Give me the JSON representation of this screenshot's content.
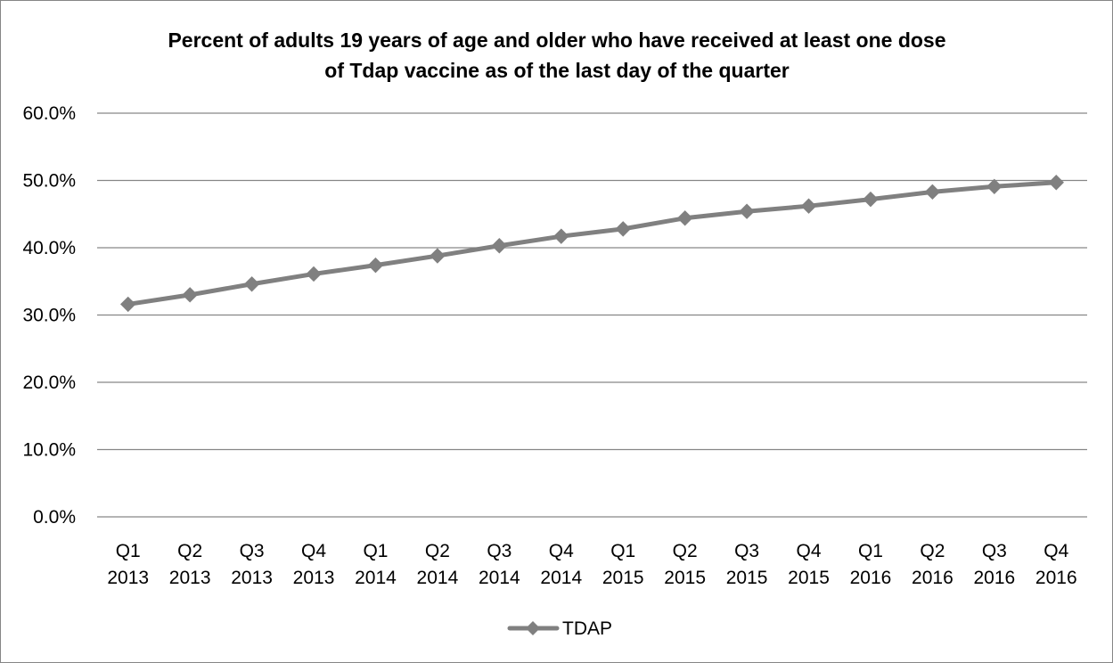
{
  "chart_data": {
    "type": "line",
    "title_lines": [
      "Percent of adults 19 years of age and older who have received at least one dose",
      "of Tdap vaccine as of the last day of the quarter"
    ],
    "xlabel": "",
    "ylabel": "",
    "categories": [
      [
        "Q1",
        "2013"
      ],
      [
        "Q2",
        "2013"
      ],
      [
        "Q3",
        "2013"
      ],
      [
        "Q4",
        "2013"
      ],
      [
        "Q1",
        "2014"
      ],
      [
        "Q2",
        "2014"
      ],
      [
        "Q3",
        "2014"
      ],
      [
        "Q4",
        "2014"
      ],
      [
        "Q1",
        "2015"
      ],
      [
        "Q2",
        "2015"
      ],
      [
        "Q3",
        "2015"
      ],
      [
        "Q4",
        "2015"
      ],
      [
        "Q1",
        "2016"
      ],
      [
        "Q2",
        "2016"
      ],
      [
        "Q3",
        "2016"
      ],
      [
        "Q4",
        "2016"
      ]
    ],
    "y_ticks": [
      "0.0%",
      "10.0%",
      "20.0%",
      "30.0%",
      "40.0%",
      "50.0%",
      "60.0%"
    ],
    "ylim": [
      0,
      60
    ],
    "grid": true,
    "legend_position": "bottom",
    "series": [
      {
        "name": "TDAP",
        "color": "#808080",
        "marker": "diamond",
        "values": [
          31.6,
          33.0,
          34.6,
          36.1,
          37.4,
          38.8,
          40.3,
          41.7,
          42.8,
          44.4,
          45.4,
          46.2,
          47.2,
          48.3,
          49.1,
          49.7
        ]
      }
    ]
  }
}
